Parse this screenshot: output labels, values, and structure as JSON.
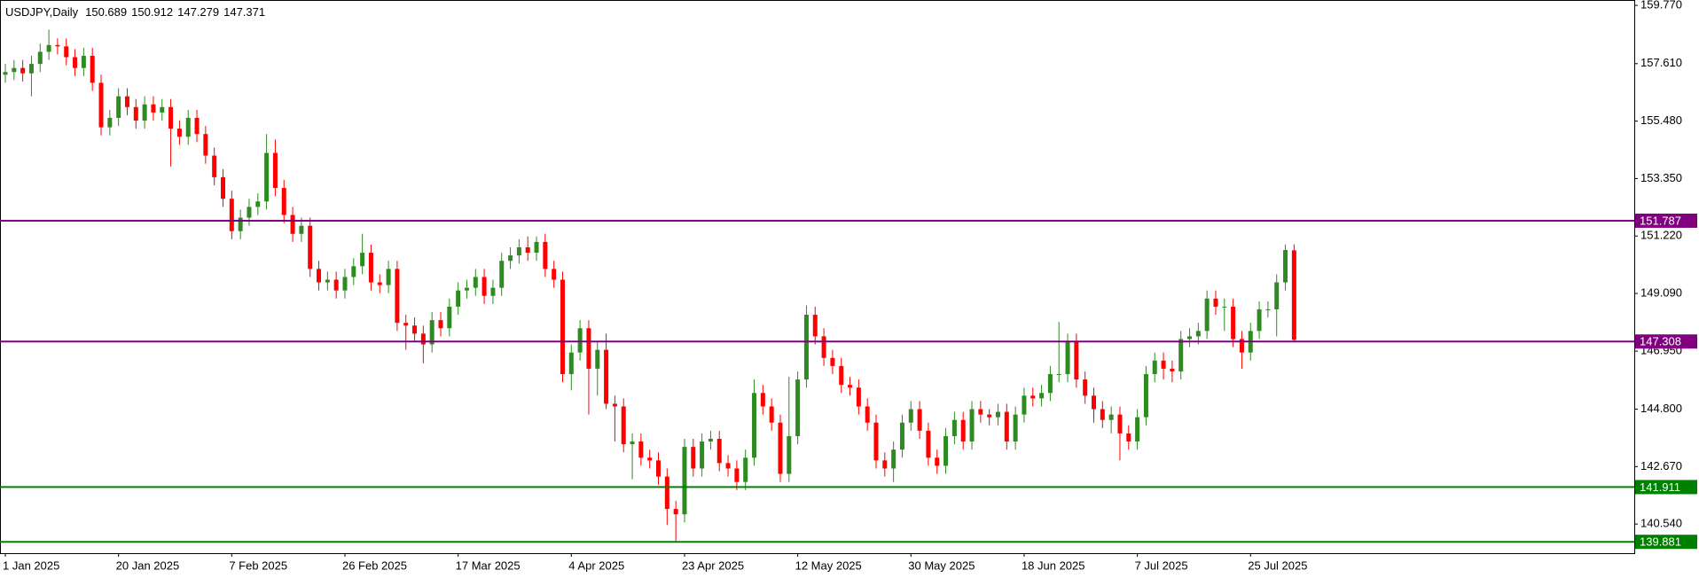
{
  "chart_data": {
    "type": "candlestick",
    "title": "USDJPY,Daily",
    "categories": [
      "1 Jan 2025",
      null,
      null,
      null,
      null,
      null,
      null,
      null,
      null,
      null,
      null,
      null,
      null,
      "20 Jan 2025",
      null,
      null,
      null,
      null,
      null,
      null,
      null,
      null,
      null,
      null,
      null,
      null,
      "7 Feb 2025",
      null,
      null,
      null,
      null,
      null,
      null,
      null,
      null,
      null,
      null,
      null,
      null,
      "26 Feb 2025",
      null,
      null,
      null,
      null,
      null,
      null,
      null,
      null,
      null,
      null,
      null,
      null,
      "17 Mar 2025",
      null,
      null,
      null,
      null,
      null,
      null,
      null,
      null,
      null,
      null,
      null,
      null,
      "4 Apr 2025",
      null,
      null,
      null,
      null,
      null,
      null,
      null,
      null,
      null,
      null,
      null,
      null,
      "23 Apr 2025",
      null,
      null,
      null,
      null,
      null,
      null,
      null,
      null,
      null,
      null,
      null,
      null,
      "12 May 2025",
      null,
      null,
      null,
      null,
      null,
      null,
      null,
      null,
      null,
      null,
      null,
      null,
      "30 May 2025",
      null,
      null,
      null,
      null,
      null,
      null,
      null,
      null,
      null,
      null,
      null,
      null,
      "18 Jun 2025",
      null,
      null,
      null,
      null,
      null,
      null,
      null,
      null,
      null,
      null,
      null,
      null,
      "7 Jul 2025",
      null,
      null,
      null,
      null,
      null,
      null,
      null,
      null,
      null,
      null,
      null,
      null,
      "25 Jul 2025",
      null,
      null,
      null,
      null,
      null
    ],
    "open": [
      157.2,
      157.3,
      157.45,
      157.25,
      157.6,
      158.05,
      158.3,
      158.25,
      157.85,
      157.45,
      157.9,
      156.9,
      155.25,
      155.6,
      156.4,
      156.0,
      155.5,
      156.1,
      155.8,
      156.0,
      155.2,
      154.9,
      155.6,
      155.0,
      154.2,
      153.4,
      152.6,
      151.4,
      151.9,
      152.3,
      152.5,
      154.3,
      153.0,
      152.0,
      151.3,
      151.6,
      150.0,
      149.5,
      149.6,
      149.2,
      149.7,
      150.1,
      150.6,
      149.5,
      149.4,
      150.0,
      148.0,
      147.9,
      147.6,
      147.2,
      148.1,
      147.8,
      148.6,
      149.2,
      149.3,
      149.7,
      149.0,
      149.3,
      150.3,
      150.5,
      150.8,
      150.6,
      151.0,
      150.0,
      149.6,
      146.1,
      146.9,
      147.8,
      146.3,
      147.0,
      145.0,
      144.9,
      143.5,
      143.6,
      143.0,
      142.9,
      142.3,
      141.1,
      140.9,
      143.4,
      142.6,
      143.6,
      143.7,
      142.8,
      142.6,
      142.1,
      143.0,
      145.4,
      144.9,
      144.3,
      142.4,
      143.8,
      145.9,
      148.3,
      147.5,
      146.7,
      146.4,
      145.7,
      145.6,
      144.9,
      144.3,
      142.9,
      142.6,
      143.3,
      144.3,
      144.8,
      144.0,
      143.0,
      142.7,
      143.8,
      144.4,
      143.6,
      144.8,
      144.6,
      144.5,
      144.7,
      143.6,
      144.6,
      145.3,
      145.2,
      145.4,
      146.1,
      146.1,
      147.3,
      145.9,
      145.3,
      144.8,
      144.4,
      144.6,
      143.9,
      143.6,
      144.5,
      146.1,
      146.6,
      146.3,
      146.2,
      147.4,
      147.5,
      147.7,
      148.9,
      148.6,
      148.6,
      147.4,
      146.9,
      147.7,
      148.5,
      148.5,
      149.5,
      150.689
    ],
    "high": [
      157.6,
      157.75,
      157.75,
      157.9,
      158.35,
      158.87,
      158.55,
      158.55,
      158.15,
      158.2,
      158.2,
      157.2,
      155.9,
      156.7,
      156.7,
      156.3,
      156.4,
      156.4,
      156.3,
      156.3,
      155.5,
      155.9,
      155.9,
      155.3,
      154.5,
      153.7,
      152.9,
      152.2,
      152.6,
      152.8,
      155.0,
      154.8,
      153.3,
      152.3,
      151.9,
      151.9,
      150.3,
      149.9,
      149.9,
      150.0,
      150.4,
      151.3,
      150.9,
      149.8,
      150.3,
      150.3,
      148.3,
      148.2,
      147.9,
      148.4,
      148.4,
      148.9,
      149.5,
      149.6,
      150.0,
      150.0,
      149.6,
      150.6,
      150.8,
      151.1,
      151.2,
      151.2,
      151.3,
      150.3,
      149.9,
      147.2,
      148.1,
      148.1,
      147.3,
      147.6,
      145.3,
      145.2,
      143.9,
      143.9,
      143.3,
      143.2,
      142.6,
      141.4,
      143.7,
      143.7,
      143.9,
      144.0,
      144.0,
      143.1,
      142.9,
      143.3,
      145.9,
      145.7,
      145.2,
      144.6,
      146.0,
      146.2,
      148.65,
      148.6,
      147.8,
      147.0,
      146.7,
      146.0,
      145.9,
      145.2,
      144.6,
      143.2,
      143.6,
      144.6,
      145.1,
      145.1,
      144.3,
      143.3,
      144.1,
      144.7,
      144.7,
      145.1,
      145.1,
      144.8,
      145.0,
      145.0,
      144.9,
      145.6,
      145.6,
      145.7,
      146.4,
      148.03,
      147.6,
      147.6,
      146.2,
      145.6,
      145.1,
      144.9,
      144.9,
      144.2,
      144.8,
      146.4,
      146.9,
      146.9,
      146.6,
      147.7,
      147.8,
      148.0,
      149.2,
      149.2,
      148.9,
      148.9,
      147.7,
      148.0,
      148.8,
      148.8,
      149.8,
      150.91,
      150.912
    ],
    "low": [
      156.9,
      157.0,
      156.95,
      156.4,
      157.3,
      157.75,
      157.95,
      157.55,
      157.15,
      157.15,
      156.6,
      154.95,
      154.95,
      155.3,
      155.7,
      155.2,
      155.2,
      155.5,
      155.5,
      153.8,
      154.6,
      154.6,
      154.7,
      153.9,
      153.1,
      152.3,
      151.1,
      151.1,
      151.6,
      152.0,
      152.2,
      152.7,
      151.7,
      151.0,
      151.0,
      149.7,
      149.2,
      149.2,
      148.9,
      148.9,
      149.4,
      149.8,
      149.2,
      149.1,
      149.1,
      147.7,
      147.0,
      147.3,
      146.5,
      146.9,
      147.5,
      147.5,
      148.3,
      148.9,
      149.0,
      148.7,
      148.7,
      149.0,
      150.0,
      150.2,
      150.3,
      150.3,
      149.7,
      149.3,
      145.8,
      145.5,
      146.6,
      144.6,
      145.3,
      144.8,
      143.6,
      143.2,
      142.2,
      142.7,
      142.6,
      142.0,
      140.5,
      139.89,
      140.6,
      142.3,
      142.3,
      143.3,
      142.5,
      142.3,
      141.8,
      141.8,
      142.7,
      144.6,
      144.0,
      142.1,
      142.1,
      143.5,
      145.6,
      147.2,
      146.4,
      146.1,
      145.4,
      145.3,
      144.6,
      144.0,
      142.6,
      142.3,
      142.1,
      143.0,
      144.0,
      143.7,
      142.7,
      142.4,
      142.4,
      143.5,
      143.3,
      143.3,
      144.3,
      144.2,
      144.2,
      143.3,
      143.3,
      144.3,
      144.9,
      144.9,
      145.1,
      145.8,
      145.8,
      145.6,
      145.0,
      144.3,
      144.1,
      143.9,
      142.9,
      143.3,
      143.3,
      144.2,
      145.8,
      145.9,
      145.8,
      145.9,
      147.1,
      147.2,
      147.4,
      148.3,
      147.7,
      147.1,
      146.3,
      146.6,
      147.4,
      148.2,
      147.5,
      149.2,
      147.279
    ],
    "close": [
      157.3,
      157.45,
      157.25,
      157.6,
      158.05,
      158.3,
      158.25,
      157.85,
      157.45,
      157.9,
      156.9,
      155.25,
      155.6,
      156.4,
      156.0,
      155.5,
      156.1,
      155.8,
      156.0,
      155.2,
      154.9,
      155.6,
      155.0,
      154.2,
      153.4,
      152.6,
      151.4,
      151.9,
      152.3,
      152.5,
      154.3,
      153.0,
      152.0,
      151.3,
      151.6,
      150.0,
      149.5,
      149.6,
      149.2,
      149.7,
      150.1,
      150.6,
      149.5,
      149.4,
      150.0,
      148.0,
      147.9,
      147.6,
      147.2,
      148.1,
      147.8,
      148.6,
      149.2,
      149.3,
      149.7,
      149.0,
      149.3,
      150.3,
      150.5,
      150.8,
      150.6,
      151.0,
      150.0,
      149.6,
      146.1,
      146.9,
      147.8,
      146.3,
      147.0,
      145.0,
      144.9,
      143.5,
      143.6,
      143.0,
      142.9,
      142.3,
      141.1,
      140.9,
      143.4,
      142.6,
      143.6,
      143.7,
      142.8,
      142.6,
      142.1,
      143.0,
      145.4,
      144.9,
      144.3,
      142.4,
      143.8,
      145.9,
      148.3,
      147.5,
      146.7,
      146.4,
      145.7,
      145.6,
      144.9,
      144.3,
      142.9,
      142.6,
      143.3,
      144.3,
      144.8,
      144.0,
      143.0,
      142.7,
      143.8,
      144.4,
      143.6,
      144.8,
      144.6,
      144.5,
      144.7,
      143.6,
      144.6,
      145.3,
      145.2,
      145.4,
      146.1,
      146.1,
      147.3,
      145.9,
      145.3,
      144.8,
      144.4,
      144.6,
      143.9,
      143.6,
      144.5,
      146.1,
      146.6,
      146.3,
      146.2,
      147.4,
      147.5,
      147.7,
      148.9,
      148.6,
      148.6,
      147.4,
      146.9,
      147.7,
      148.5,
      148.5,
      149.5,
      150.7,
      147.371
    ],
    "up_color": "#2e8b22",
    "down_color": "#ff0000",
    "ylim": [
      139.46,
      159.97
    ],
    "yticks": [
      {
        "value": 159.77,
        "label": "159.770"
      },
      {
        "value": 157.61,
        "label": "157.610"
      },
      {
        "value": 155.48,
        "label": "155.480"
      },
      {
        "value": 153.35,
        "label": "153.350"
      },
      {
        "value": 151.22,
        "label": "151.220"
      },
      {
        "value": 149.09,
        "label": "149.090"
      },
      {
        "value": 146.95,
        "label": "146.950"
      },
      {
        "value": 144.8,
        "label": "144.800"
      },
      {
        "value": 142.67,
        "label": "142.670"
      },
      {
        "value": 140.54,
        "label": "140.540"
      }
    ],
    "levels": [
      {
        "value": 151.787,
        "color": "#800080"
      },
      {
        "value": 147.308,
        "color": "#800080"
      },
      {
        "value": 141.911,
        "color": "#008000"
      },
      {
        "value": 139.881,
        "color": "#008000"
      }
    ]
  }
}
